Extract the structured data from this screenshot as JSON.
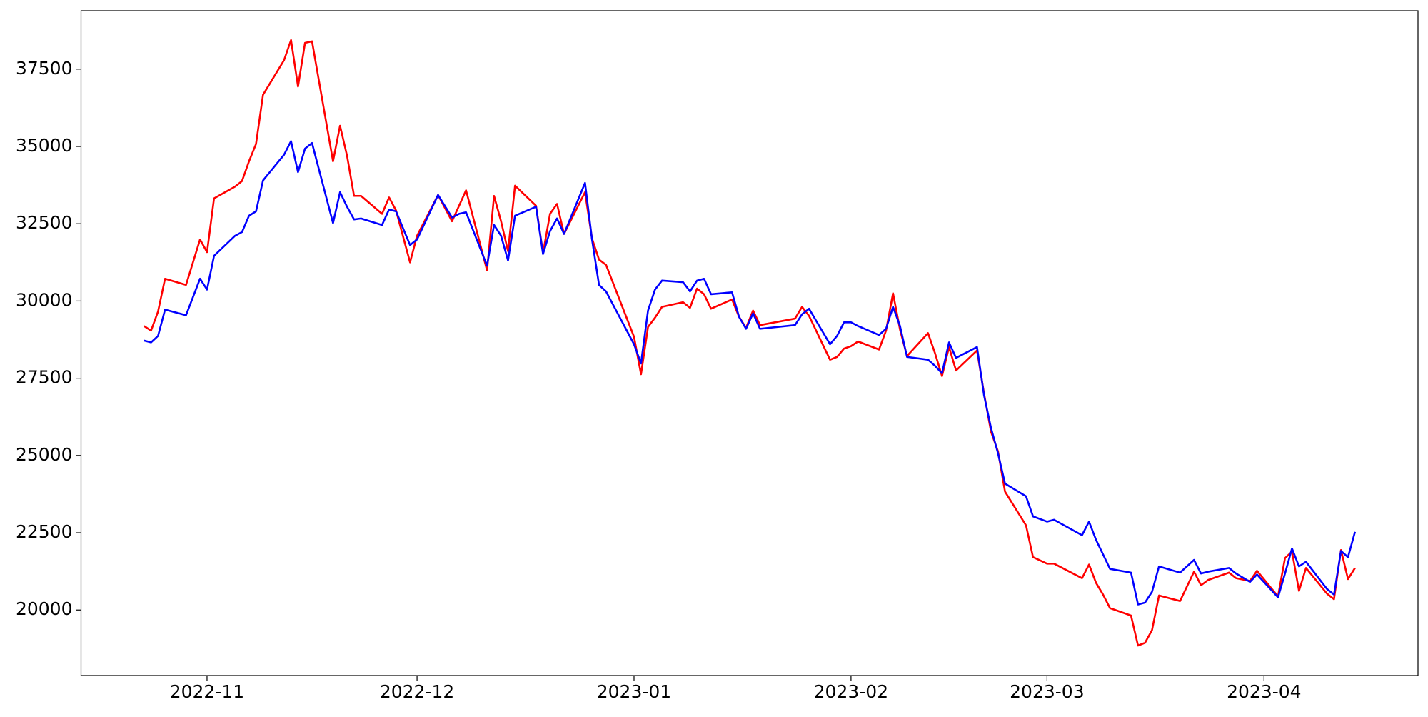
{
  "chart_data": {
    "type": "line",
    "x": [
      "2022-10-23",
      "2022-10-24",
      "2022-10-25",
      "2022-10-26",
      "2022-10-29",
      "2022-10-31",
      "2022-11-01",
      "2022-11-02",
      "2022-11-05",
      "2022-11-06",
      "2022-11-07",
      "2022-11-08",
      "2022-11-09",
      "2022-11-12",
      "2022-11-13",
      "2022-11-14",
      "2022-11-15",
      "2022-11-16",
      "2022-11-19",
      "2022-11-20",
      "2022-11-21",
      "2022-11-22",
      "2022-11-23",
      "2022-11-26",
      "2022-11-27",
      "2022-11-28",
      "2022-11-30",
      "2022-12-01",
      "2022-12-04",
      "2022-12-06",
      "2022-12-07",
      "2022-12-08",
      "2022-12-11",
      "2022-12-12",
      "2022-12-13",
      "2022-12-14",
      "2022-12-15",
      "2022-12-18",
      "2022-12-19",
      "2022-12-20",
      "2022-12-21",
      "2022-12-22",
      "2022-12-25",
      "2022-12-26",
      "2022-12-27",
      "2022-12-28",
      "2023-01-01",
      "2023-01-02",
      "2023-01-03",
      "2023-01-04",
      "2023-01-05",
      "2023-01-08",
      "2023-01-09",
      "2023-01-10",
      "2023-01-11",
      "2023-01-12",
      "2023-01-15",
      "2023-01-16",
      "2023-01-17",
      "2023-01-18",
      "2023-01-19",
      "2023-01-24",
      "2023-01-25",
      "2023-01-26",
      "2023-01-29",
      "2023-01-30",
      "2023-01-31",
      "2023-02-01",
      "2023-02-02",
      "2023-02-05",
      "2023-02-06",
      "2023-02-07",
      "2023-02-08",
      "2023-02-09",
      "2023-02-12",
      "2023-02-13",
      "2023-02-14",
      "2023-02-15",
      "2023-02-16",
      "2023-02-19",
      "2023-02-20",
      "2023-02-21",
      "2023-02-22",
      "2023-02-23",
      "2023-02-26",
      "2023-02-27",
      "2023-03-01",
      "2023-03-02",
      "2023-03-06",
      "2023-03-07",
      "2023-03-08",
      "2023-03-09",
      "2023-03-10",
      "2023-03-13",
      "2023-03-14",
      "2023-03-15",
      "2023-03-16",
      "2023-03-17",
      "2023-03-20",
      "2023-03-22",
      "2023-03-23",
      "2023-03-24",
      "2023-03-27",
      "2023-03-28",
      "2023-03-30",
      "2023-03-31",
      "2023-04-03",
      "2023-04-04",
      "2023-04-05",
      "2023-04-06",
      "2023-04-07",
      "2023-04-10",
      "2023-04-11",
      "2023-04-12",
      "2023-04-13",
      "2023-04-14"
    ],
    "series": [
      {
        "color": "#ff0000",
        "values": [
          29190,
          29040,
          29660,
          30720,
          30520,
          31990,
          31580,
          33320,
          33700,
          33880,
          34520,
          35080,
          36670,
          37790,
          38440,
          36940,
          38350,
          38400,
          34520,
          35670,
          34700,
          33400,
          33400,
          32820,
          33350,
          32930,
          31250,
          32110,
          33430,
          32580,
          33080,
          33580,
          30990,
          33400,
          32580,
          31610,
          33730,
          33080,
          31550,
          32820,
          33140,
          32170,
          33520,
          32020,
          31340,
          31170,
          28840,
          27630,
          29160,
          29460,
          29810,
          29960,
          29780,
          30400,
          30220,
          29750,
          30050,
          29490,
          29130,
          29690,
          29220,
          29430,
          29810,
          29520,
          28100,
          28190,
          28460,
          28540,
          28690,
          28430,
          29040,
          30250,
          29070,
          28220,
          28960,
          28310,
          27570,
          28510,
          27750,
          28400,
          27010,
          25770,
          25130,
          23830,
          22740,
          21710,
          21500,
          21500,
          21030,
          21470,
          20880,
          20500,
          20060,
          19820,
          18850,
          18940,
          19350,
          20470,
          20290,
          21240,
          20800,
          20970,
          21210,
          21030,
          20940,
          21270,
          20440,
          21680,
          21890,
          20620,
          21360,
          20530,
          20350,
          21940,
          21000,
          21360
        ]
      },
      {
        "color": "#0000ff",
        "values": [
          28720,
          28660,
          28870,
          29720,
          29540,
          30720,
          30370,
          31460,
          32110,
          32230,
          32760,
          32900,
          33900,
          34730,
          35170,
          34170,
          34930,
          35110,
          32520,
          33520,
          33050,
          32640,
          32670,
          32460,
          32960,
          32900,
          31810,
          31990,
          33430,
          32700,
          32820,
          32870,
          31140,
          32460,
          32110,
          31310,
          32760,
          33050,
          31520,
          32260,
          32670,
          32170,
          33820,
          31990,
          30520,
          30310,
          28600,
          27980,
          29690,
          30370,
          30660,
          30610,
          30310,
          30660,
          30720,
          30220,
          30280,
          29490,
          29100,
          29600,
          29100,
          29220,
          29570,
          29750,
          28600,
          28870,
          29310,
          29310,
          29190,
          28900,
          29100,
          29810,
          29190,
          28190,
          28100,
          27900,
          27660,
          28660,
          28160,
          28510,
          26950,
          25890,
          25070,
          24090,
          23680,
          23030,
          22860,
          22920,
          22420,
          22860,
          22270,
          21800,
          21330,
          21210,
          20180,
          20240,
          20590,
          21410,
          21210,
          21620,
          21180,
          21240,
          21360,
          21180,
          20910,
          21150,
          20410,
          21180,
          21990,
          21410,
          21560,
          20680,
          20500,
          21910,
          21710,
          22530
        ]
      }
    ],
    "xlim": [
      "2022-10-14",
      "2023-04-23"
    ],
    "xticks": [
      {
        "value": "2022-11-01",
        "label": "2022-11"
      },
      {
        "value": "2022-12-01",
        "label": "2022-12"
      },
      {
        "value": "2023-01-01",
        "label": "2023-01"
      },
      {
        "value": "2023-02-01",
        "label": "2023-02"
      },
      {
        "value": "2023-03-01",
        "label": "2023-03"
      },
      {
        "value": "2023-04-01",
        "label": "2023-04"
      }
    ],
    "ylim": [
      17880,
      39390
    ],
    "yticks": [
      20000,
      22500,
      25000,
      27500,
      30000,
      32500,
      35000,
      37500
    ],
    "grid": false
  }
}
